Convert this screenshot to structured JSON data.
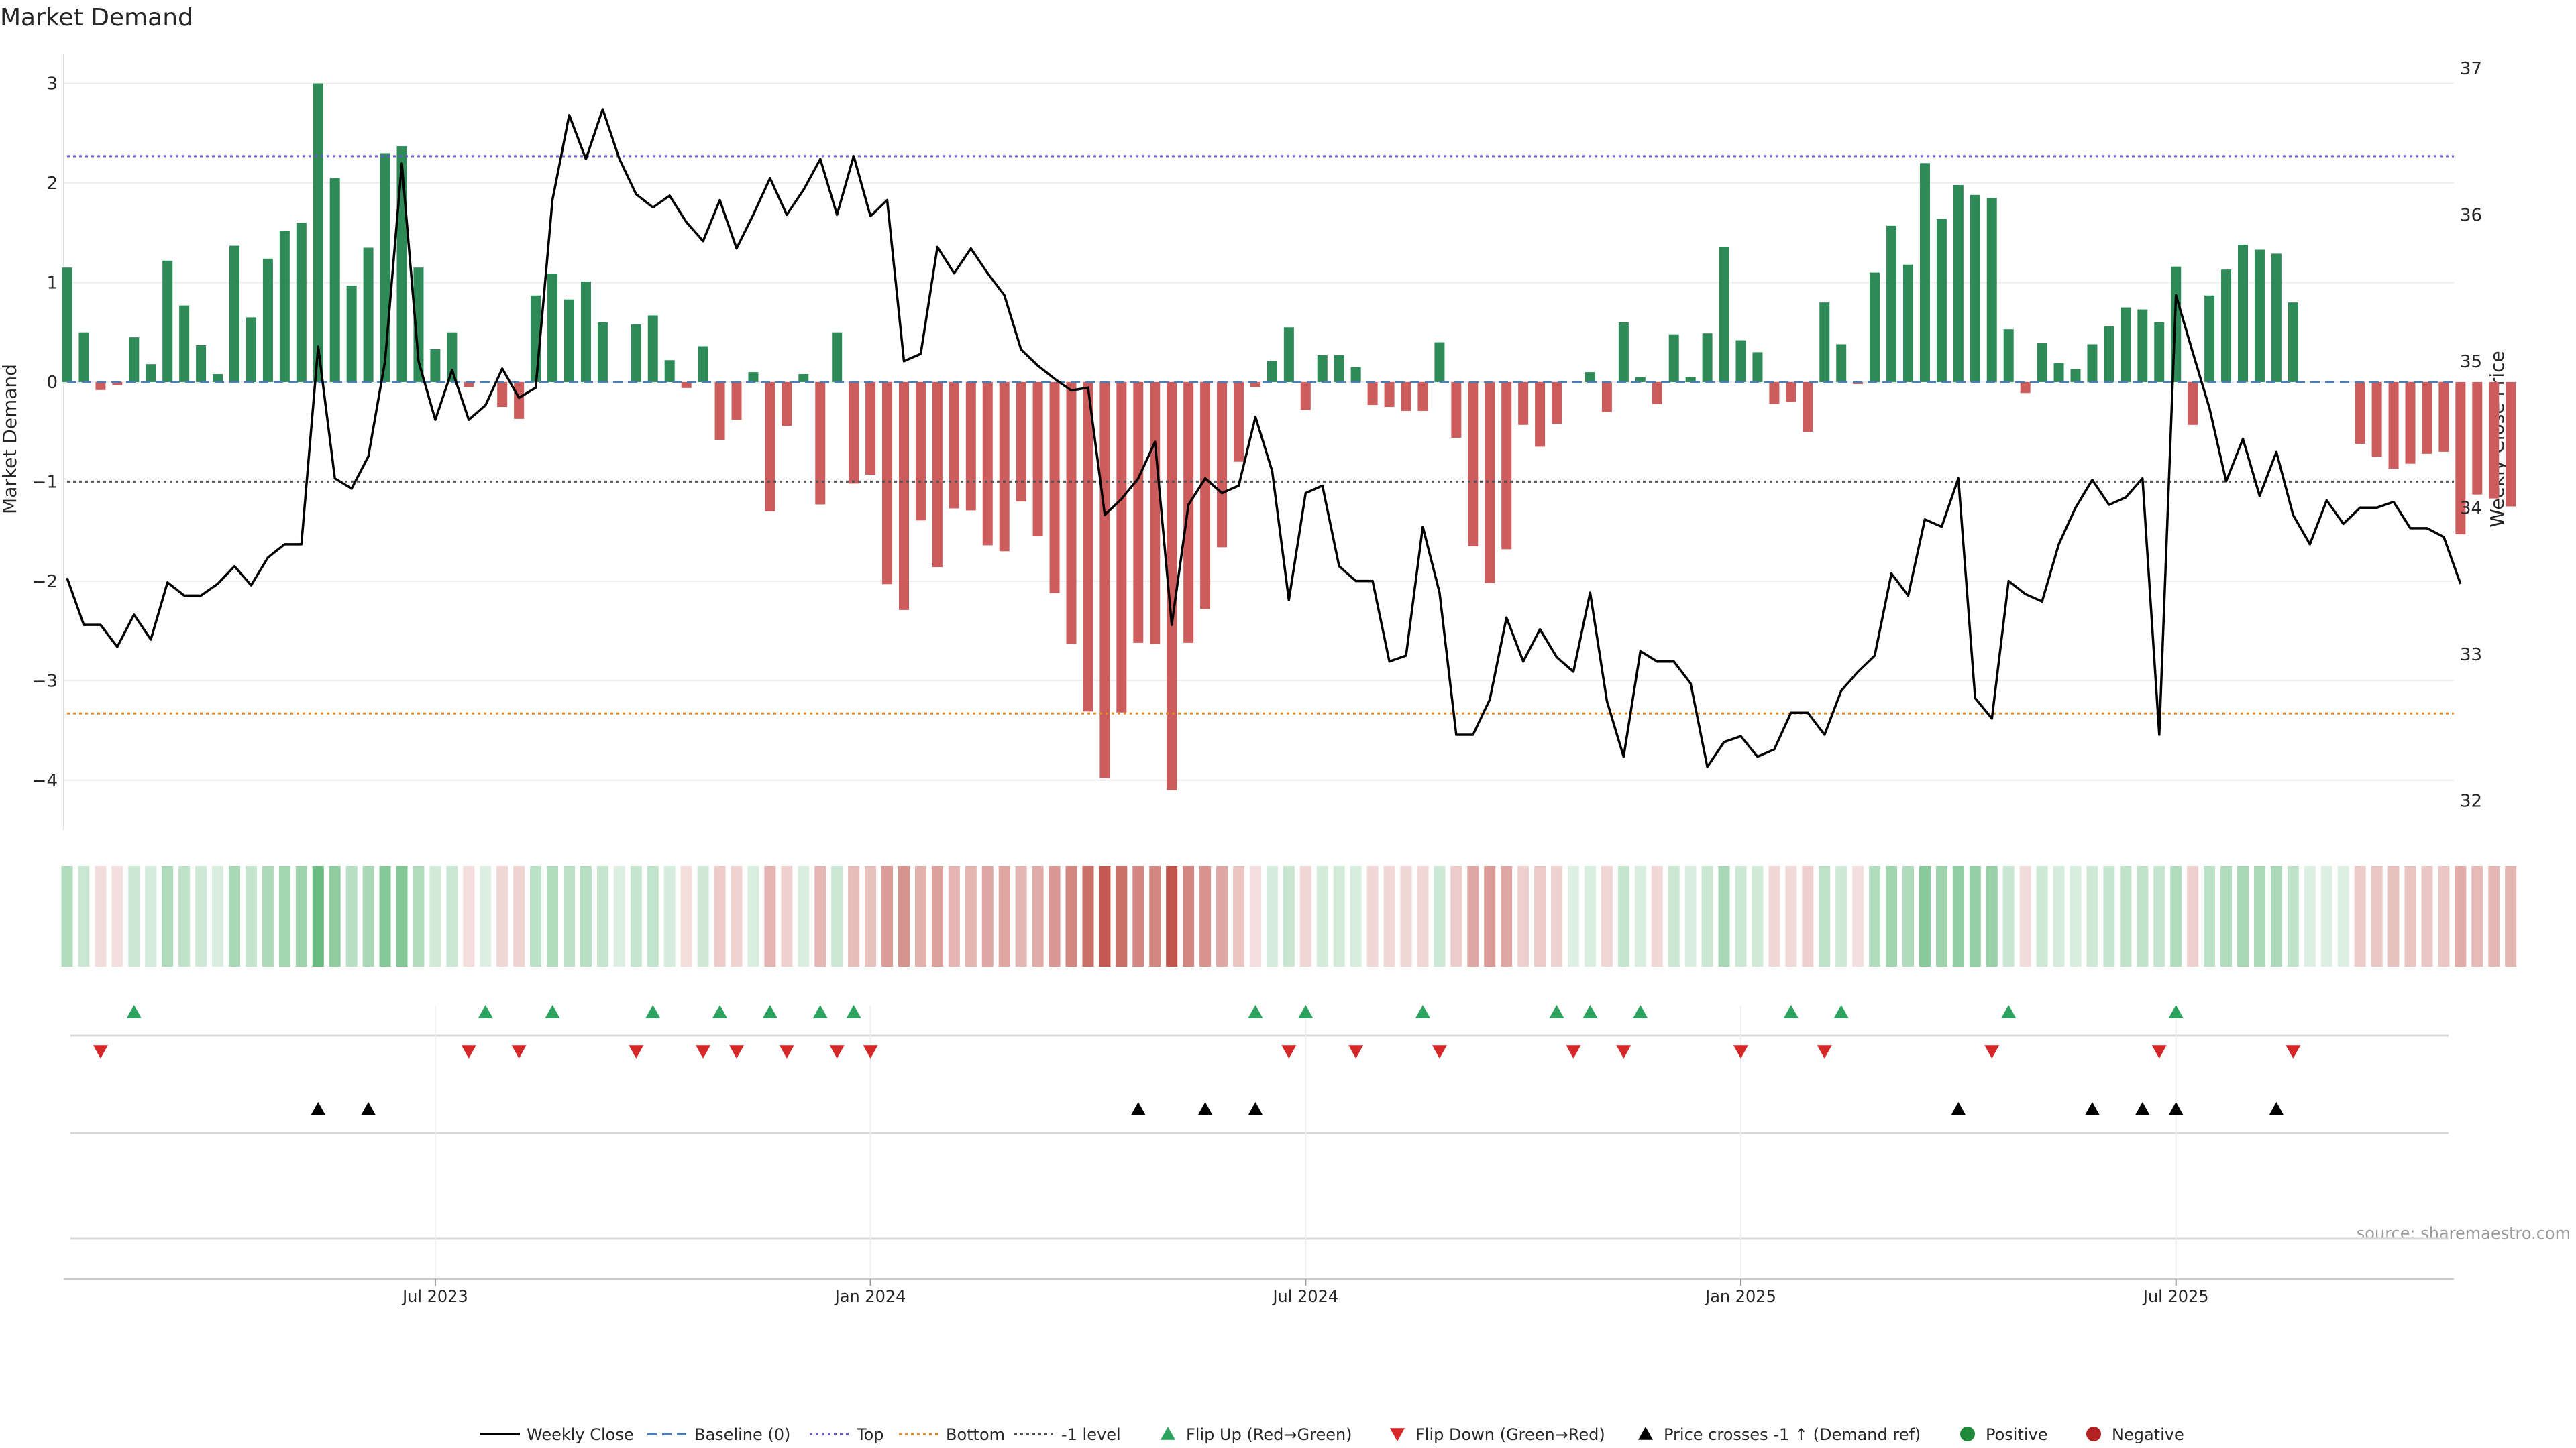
{
  "chart_data": {
    "type": "bar",
    "title": "Market Demand",
    "ylabel": "Market Demand",
    "y2label": "Weekly Close Price",
    "source": "source: sharemaestro.com",
    "ylim": [
      -4.5,
      3.3
    ],
    "y2lim": [
      31.8,
      37.1
    ],
    "yticks": [
      3,
      2,
      1,
      0,
      -1,
      -2,
      -3,
      -4
    ],
    "ytick_labels": [
      "3",
      "2",
      "1",
      "0",
      "−1",
      "−2",
      "−3",
      "−4"
    ],
    "y2ticks": [
      37,
      36,
      35,
      34,
      33,
      32
    ],
    "xticks": [
      {
        "label": "Jul 2023",
        "index": 22
      },
      {
        "label": "Jan 2024",
        "index": 48
      },
      {
        "label": "Jul 2024",
        "index": 74
      },
      {
        "label": "Jan 2025",
        "index": 100
      },
      {
        "label": "Jul 2025",
        "index": 126
      }
    ],
    "levels": {
      "top": 2.27,
      "bottom": -3.33,
      "minus_one": -1,
      "baseline": 0
    },
    "colors": {
      "positive": "#2e8b57",
      "negative": "#cd5c5c",
      "price": "#000000",
      "top": "#6a5acd",
      "bottom": "#e08a2e",
      "minus_one": "#555555",
      "baseline": "#4a7fb5",
      "flip_up": "#2ca25f",
      "flip_down": "#d62728",
      "cross": "#000000",
      "legend_positive": "#1f8a3a",
      "legend_negative": "#b22222"
    },
    "demand": [
      1.15,
      0.5,
      -0.08,
      -0.03,
      0.45,
      0.18,
      1.22,
      0.77,
      0.37,
      0.08,
      1.37,
      0.65,
      1.24,
      1.52,
      1.6,
      3.0,
      2.05,
      0.97,
      1.35,
      2.3,
      2.37,
      1.15,
      0.33,
      0.5,
      -0.05,
      0.0,
      -0.25,
      -0.37,
      0.87,
      1.09,
      0.83,
      1.01,
      0.6,
      0.0,
      0.58,
      0.67,
      0.22,
      -0.06,
      0.36,
      -0.58,
      -0.38,
      0.1,
      -1.3,
      -0.44,
      0.08,
      -1.23,
      0.5,
      -1.02,
      -0.93,
      -2.03,
      -2.29,
      -1.39,
      -1.86,
      -1.27,
      -1.29,
      -1.64,
      -1.7,
      -1.2,
      -1.55,
      -2.12,
      -2.63,
      -3.31,
      -3.98,
      -3.32,
      -2.62,
      -2.63,
      -4.1,
      -2.62,
      -2.28,
      -1.66,
      -0.8,
      -0.05,
      0.21,
      0.55,
      -0.28,
      0.27,
      0.27,
      0.15,
      -0.23,
      -0.25,
      -0.29,
      -0.29,
      0.4,
      -0.56,
      -1.65,
      -2.02,
      -1.68,
      -0.43,
      -0.65,
      -0.42,
      0.0,
      0.1,
      -0.3,
      0.6,
      0.05,
      -0.22,
      0.48,
      0.05,
      0.49,
      1.36,
      0.42,
      0.3,
      -0.22,
      -0.2,
      -0.5,
      0.8,
      0.38,
      -0.02,
      1.1,
      1.57,
      1.18,
      2.2,
      1.64,
      1.98,
      1.88,
      1.85,
      0.53,
      -0.11,
      0.39,
      0.19,
      0.13,
      0.38,
      0.56,
      0.75,
      0.73,
      0.6,
      1.16,
      -0.43,
      0.87,
      1.13,
      1.38,
      1.33,
      1.29,
      0.8,
      0.0,
      0.0,
      0.0,
      -0.62,
      -0.75,
      -0.87,
      -0.82,
      -0.72,
      -0.7,
      -1.53,
      -1.13,
      -1.17,
      -1.25
    ],
    "weekly_close": [
      33.52,
      33.2,
      33.2,
      33.05,
      33.27,
      33.1,
      33.49,
      33.4,
      33.4,
      33.48,
      33.6,
      33.47,
      33.66,
      33.75,
      33.75,
      35.1,
      34.2,
      34.13,
      34.35,
      35.0,
      36.35,
      35.0,
      34.6,
      34.94,
      34.6,
      34.7,
      34.95,
      34.75,
      34.82,
      36.1,
      36.68,
      36.38,
      36.72,
      36.38,
      36.14,
      36.05,
      36.13,
      35.95,
      35.82,
      36.1,
      35.77,
      36.0,
      36.25,
      36.0,
      36.17,
      36.38,
      36.0,
      36.4,
      35.99,
      36.1,
      35.0,
      35.05,
      35.78,
      35.6,
      35.77,
      35.6,
      35.45,
      35.08,
      34.97,
      34.88,
      34.8,
      34.82,
      33.95,
      34.06,
      34.2,
      34.45,
      33.2,
      34.02,
      34.2,
      34.1,
      34.15,
      34.62,
      34.25,
      33.37,
      34.1,
      34.15,
      33.6,
      33.5,
      33.5,
      32.95,
      32.99,
      33.87,
      33.42,
      32.45,
      32.45,
      32.69,
      33.25,
      32.95,
      33.17,
      32.98,
      32.88,
      33.42,
      32.68,
      32.3,
      33.02,
      32.95,
      32.95,
      32.8,
      32.23,
      32.4,
      32.44,
      32.3,
      32.35,
      32.6,
      32.6,
      32.45,
      32.75,
      32.88,
      32.99,
      33.55,
      33.4,
      33.92,
      33.87,
      34.2,
      32.7,
      32.56,
      33.5,
      33.41,
      33.36,
      33.75,
      34.0,
      34.19,
      34.02,
      34.07,
      34.2,
      32.45,
      35.45,
      35.06,
      34.68,
      34.18,
      34.47,
      34.08,
      34.38,
      33.95,
      33.75,
      34.05,
      33.89,
      34.0,
      34.0,
      34.04,
      33.86,
      33.86,
      33.8,
      33.48
    ],
    "flip_up_idx": [
      4,
      25,
      29,
      35,
      39,
      42,
      45,
      47,
      71,
      74,
      81,
      89,
      91,
      94,
      103,
      106,
      116,
      126
    ],
    "flip_down_idx": [
      2,
      24,
      27,
      34,
      38,
      40,
      43,
      46,
      48,
      73,
      77,
      82,
      90,
      93,
      100,
      105,
      115,
      125,
      133
    ],
    "cross_idx": [
      15,
      18,
      64,
      68,
      71,
      113,
      121,
      124,
      126,
      132
    ],
    "xtick_labels_note": "",
    "legend": [
      "Weekly Close",
      "Baseline (0)",
      "Top",
      "Bottom",
      "-1 level",
      "Flip Up (Red→Green)",
      "Flip Down (Green→Red)",
      "Price crosses -1 ↑ (Demand ref)",
      "Positive",
      "Negative"
    ]
  }
}
